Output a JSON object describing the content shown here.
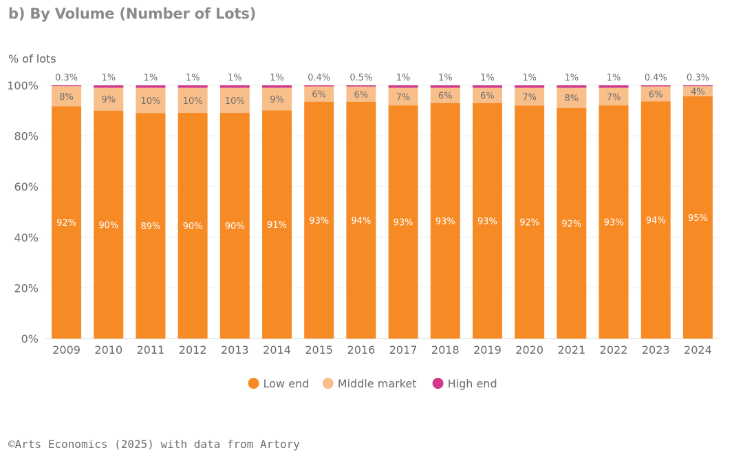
{
  "title": "b) By Volume (Number of Lots)",
  "source": "©Arts Economics (2025) with data from Artory",
  "chart_data": {
    "type": "bar",
    "stacked": true,
    "ylabel": "% of lots",
    "ylim": [
      0,
      100
    ],
    "yticks": [
      "0%",
      "20%",
      "40%",
      "60%",
      "80%",
      "100%"
    ],
    "grid": true,
    "legend_position": "bottom-center",
    "categories": [
      "2009",
      "2010",
      "2011",
      "2012",
      "2013",
      "2014",
      "2015",
      "2016",
      "2017",
      "2018",
      "2019",
      "2020",
      "2021",
      "2022",
      "2023",
      "2024"
    ],
    "series": [
      {
        "name": "Low end",
        "color": "#f68b26",
        "values": [
          92,
          90,
          89,
          90,
          90,
          91,
          93,
          94,
          93,
          93,
          93,
          92,
          92,
          93,
          94,
          95
        ],
        "labels": [
          "92%",
          "90%",
          "89%",
          "90%",
          "90%",
          "91%",
          "93%",
          "94%",
          "93%",
          "93%",
          "93%",
          "92%",
          "92%",
          "93%",
          "94%",
          "95%"
        ]
      },
      {
        "name": "Middle market",
        "color": "#f9bf8a",
        "values": [
          8,
          9,
          10,
          10,
          10,
          9,
          6,
          6,
          7,
          6,
          6,
          7,
          8,
          7,
          6,
          4
        ],
        "labels": [
          "8%",
          "9%",
          "10%",
          "10%",
          "10%",
          "9%",
          "6%",
          "6%",
          "7%",
          "6%",
          "6%",
          "7%",
          "8%",
          "7%",
          "6%",
          "4%"
        ]
      },
      {
        "name": "High end",
        "color": "#d0398d",
        "values": [
          0.3,
          1,
          1,
          1,
          1,
          1,
          0.4,
          0.5,
          1,
          1,
          1,
          1,
          1,
          1,
          0.4,
          0.3
        ],
        "labels": [
          "0.3%",
          "1%",
          "1%",
          "1%",
          "1%",
          "1%",
          "0.4%",
          "0.5%",
          "1%",
          "1%",
          "1%",
          "1%",
          "1%",
          "1%",
          "0.4%",
          "0.3%"
        ]
      }
    ]
  }
}
